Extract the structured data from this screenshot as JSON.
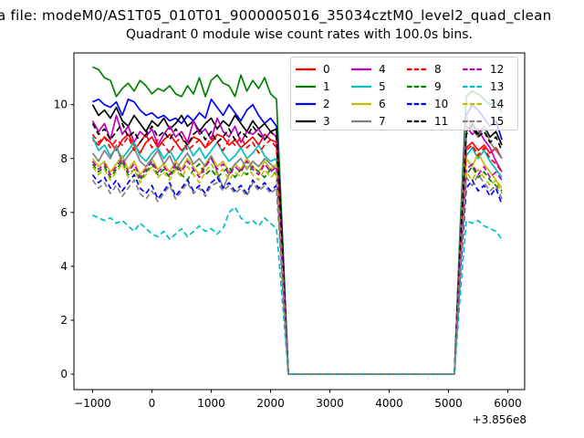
{
  "figure": {
    "suptitle": "a file: modeM0/AS1T05_010T01_9000005016_35034cztM0_level2_quad_clean",
    "axes_title": "Quadrant 0 module wise count rates with 100.0s bins."
  },
  "chart_data": {
    "type": "line",
    "title": "Quadrant 0 module wise count rates with 100.0s bins.",
    "xlabel": "",
    "ylabel": "",
    "grid": false,
    "xlim": [
      -1315,
      6285
    ],
    "ylim": [
      -0.576,
      11.92
    ],
    "x_offset_label": "+3.856e8",
    "x_ticks": {
      "values": [
        -1000,
        0,
        1000,
        2000,
        3000,
        4000,
        5000,
        6000
      ],
      "labels": [
        "−1000",
        "0",
        "1000",
        "2000",
        "3000",
        "4000",
        "5000",
        "6000"
      ]
    },
    "y_ticks": {
      "values": [
        0,
        2,
        4,
        6,
        8,
        10
      ],
      "labels": [
        "0",
        "2",
        "4",
        "6",
        "8",
        "10"
      ]
    },
    "x_start": -1000,
    "x_step": 100,
    "legend": {
      "position": "upper right",
      "ncol": 4
    },
    "series": [
      {
        "name": "0",
        "color": "#ff0000",
        "dashed": false,
        "values": [
          8.7,
          8.5,
          8.8,
          8.6,
          8.3,
          8.7,
          8.9,
          8.5,
          8.2,
          8.6,
          8.8,
          8.4,
          8.7,
          8.9,
          8.6,
          8.3,
          8.5,
          8.8,
          8.7,
          8.4,
          8.6,
          8.9,
          8.8,
          8.5,
          8.7,
          8.4,
          8.6,
          8.8,
          8.5,
          8.9,
          8.7,
          8.6,
          4.3,
          0,
          0,
          0,
          0,
          0,
          0,
          0,
          0,
          0,
          0,
          0,
          0,
          0,
          0,
          0,
          0,
          0,
          0,
          0,
          0,
          0,
          0,
          0,
          0,
          0,
          0,
          0,
          0,
          0,
          4.6,
          8.4,
          8.6,
          8.3,
          8.5,
          8.2,
          8.4,
          8.0
        ]
      },
      {
        "name": "1",
        "color": "#008000",
        "dashed": false,
        "values": [
          11.4,
          11.3,
          11.0,
          10.9,
          10.3,
          10.6,
          10.8,
          10.5,
          10.9,
          10.7,
          10.4,
          10.6,
          10.5,
          10.7,
          10.4,
          10.3,
          10.7,
          10.4,
          11.0,
          10.3,
          10.9,
          11.1,
          10.8,
          10.7,
          10.3,
          11.1,
          10.5,
          10.9,
          10.6,
          11.0,
          10.4,
          10.2,
          5.2,
          0,
          0,
          0,
          0,
          0,
          0,
          0,
          0,
          0,
          0,
          0,
          0,
          0,
          0,
          0,
          0,
          0,
          0,
          0,
          0,
          0,
          0,
          0,
          0,
          0,
          0,
          0,
          0,
          0,
          5.6,
          10.3,
          10.5,
          10.4,
          10.2,
          10.0,
          10.1,
          9.7
        ]
      },
      {
        "name": "2",
        "color": "#0000ff",
        "dashed": false,
        "values": [
          10.1,
          10.2,
          10.0,
          9.9,
          10.1,
          9.6,
          10.2,
          10.1,
          9.8,
          9.6,
          9.7,
          9.5,
          9.6,
          9.4,
          9.5,
          9.3,
          9.6,
          9.4,
          9.7,
          9.5,
          10.2,
          9.9,
          9.6,
          10.0,
          9.7,
          9.4,
          9.8,
          10.0,
          9.6,
          9.3,
          9.5,
          9.2,
          4.7,
          0,
          0,
          0,
          0,
          0,
          0,
          0,
          0,
          0,
          0,
          0,
          0,
          0,
          0,
          0,
          0,
          0,
          0,
          0,
          0,
          0,
          0,
          0,
          0,
          0,
          0,
          0,
          0,
          0,
          5.2,
          9.6,
          10.0,
          9.8,
          9.5,
          9.2,
          9.4,
          8.7
        ]
      },
      {
        "name": "3",
        "color": "#000000",
        "dashed": false,
        "values": [
          10.0,
          9.6,
          9.8,
          9.5,
          9.9,
          9.4,
          9.2,
          9.6,
          9.3,
          9.0,
          9.4,
          9.2,
          9.5,
          9.1,
          9.3,
          9.6,
          9.2,
          9.4,
          9.0,
          9.3,
          9.5,
          9.1,
          9.4,
          9.2,
          9.6,
          9.3,
          9.0,
          9.4,
          9.1,
          9.3,
          9.0,
          9.1,
          4.6,
          0,
          0,
          0,
          0,
          0,
          0,
          0,
          0,
          0,
          0,
          0,
          0,
          0,
          0,
          0,
          0,
          0,
          0,
          0,
          0,
          0,
          0,
          0,
          0,
          0,
          0,
          0,
          0,
          0,
          4.9,
          9.0,
          9.3,
          8.9,
          9.2,
          8.8,
          9.0,
          8.5
        ]
      },
      {
        "name": "4",
        "color": "#bf00bf",
        "dashed": false,
        "values": [
          9.4,
          9.0,
          9.3,
          8.7,
          9.6,
          8.9,
          9.2,
          8.6,
          9.0,
          8.8,
          9.1,
          8.5,
          8.9,
          9.2,
          8.8,
          9.0,
          8.6,
          9.4,
          8.9,
          9.1,
          8.7,
          9.5,
          9.0,
          8.8,
          9.2,
          8.6,
          9.0,
          8.9,
          9.1,
          8.7,
          9.0,
          8.8,
          4.4,
          0,
          0,
          0,
          0,
          0,
          0,
          0,
          0,
          0,
          0,
          0,
          0,
          0,
          0,
          0,
          0,
          0,
          0,
          0,
          0,
          0,
          0,
          0,
          0,
          0,
          0,
          0,
          0,
          0,
          5.0,
          9.2,
          8.9,
          9.1,
          8.7,
          8.4,
          7.9,
          7.5
        ]
      },
      {
        "name": "5",
        "color": "#00bfbf",
        "dashed": false,
        "values": [
          8.8,
          8.3,
          8.5,
          8.1,
          8.4,
          8.0,
          8.3,
          8.6,
          8.1,
          7.9,
          8.2,
          8.4,
          8.0,
          8.3,
          7.9,
          8.2,
          8.5,
          8.1,
          8.4,
          8.0,
          8.3,
          8.6,
          8.2,
          7.9,
          8.1,
          8.4,
          8.0,
          8.2,
          8.5,
          8.1,
          7.9,
          8.0,
          4.0,
          0,
          0,
          0,
          0,
          0,
          0,
          0,
          0,
          0,
          0,
          0,
          0,
          0,
          0,
          0,
          0,
          0,
          0,
          0,
          0,
          0,
          0,
          0,
          0,
          0,
          0,
          0,
          0,
          0,
          4.4,
          8.1,
          8.4,
          8.0,
          8.3,
          7.9,
          7.6,
          7.3
        ]
      },
      {
        "name": "6",
        "color": "#bfbf00",
        "dashed": false,
        "values": [
          8.0,
          7.7,
          7.9,
          7.5,
          7.8,
          8.1,
          7.6,
          7.9,
          7.4,
          7.7,
          8.0,
          7.6,
          7.8,
          7.5,
          7.9,
          7.6,
          8.0,
          7.7,
          7.4,
          7.8,
          8.1,
          7.7,
          7.9,
          7.5,
          7.8,
          7.6,
          8.0,
          7.7,
          7.5,
          7.9,
          7.6,
          7.8,
          3.9,
          0,
          0,
          0,
          0,
          0,
          0,
          0,
          0,
          0,
          0,
          0,
          0,
          0,
          0,
          0,
          0,
          0,
          0,
          0,
          0,
          0,
          0,
          0,
          0,
          0,
          0,
          0,
          0,
          0,
          4.3,
          8.0,
          7.7,
          8.2,
          7.8,
          7.5,
          7.2,
          6.9
        ]
      },
      {
        "name": "7",
        "color": "#808080",
        "dashed": false,
        "values": [
          8.2,
          7.9,
          8.3,
          8.0,
          8.5,
          7.8,
          8.1,
          8.4,
          7.9,
          7.7,
          8.0,
          8.3,
          7.8,
          8.1,
          7.6,
          7.9,
          8.2,
          7.8,
          8.0,
          7.7,
          8.1,
          7.5,
          6.9,
          7.4,
          7.8,
          8.0,
          7.6,
          7.9,
          7.7,
          8.0,
          7.8,
          7.6,
          3.8,
          0,
          0,
          0,
          0,
          0,
          0,
          0,
          0,
          0,
          0,
          0,
          0,
          0,
          0,
          0,
          0,
          0,
          0,
          0,
          0,
          0,
          0,
          0,
          0,
          0,
          0,
          0,
          0,
          0,
          5.2,
          9.6,
          9.1,
          8.8,
          9.2,
          8.6,
          8.3,
          8.0
        ]
      },
      {
        "name": "8",
        "color": "#ff0000",
        "dashed": true,
        "values": [
          8.9,
          8.6,
          8.8,
          8.4,
          8.7,
          8.5,
          8.8,
          8.3,
          8.6,
          8.9,
          8.4,
          8.7,
          8.5,
          8.2,
          8.6,
          8.8,
          8.3,
          8.5,
          8.7,
          8.4,
          8.8,
          8.6,
          8.3,
          8.7,
          8.5,
          8.8,
          8.4,
          8.6,
          8.2,
          8.5,
          8.7,
          8.4,
          4.2,
          0,
          0,
          0,
          0,
          0,
          0,
          0,
          0,
          0,
          0,
          0,
          0,
          0,
          0,
          0,
          0,
          0,
          0,
          0,
          0,
          0,
          0,
          0,
          0,
          0,
          0,
          0,
          0,
          0,
          4.5,
          8.3,
          8.5,
          8.1,
          8.4,
          8.0,
          7.8,
          7.5
        ]
      },
      {
        "name": "9",
        "color": "#008000",
        "dashed": true,
        "values": [
          7.8,
          7.5,
          7.7,
          7.3,
          7.6,
          7.9,
          7.4,
          7.6,
          7.2,
          7.5,
          7.8,
          7.4,
          7.6,
          7.3,
          7.7,
          7.4,
          7.2,
          7.6,
          7.8,
          7.4,
          7.6,
          7.3,
          7.5,
          7.7,
          7.3,
          7.6,
          7.4,
          7.7,
          7.5,
          7.3,
          7.6,
          7.4,
          3.7,
          0,
          0,
          0,
          0,
          0,
          0,
          0,
          0,
          0,
          0,
          0,
          0,
          0,
          0,
          0,
          0,
          0,
          0,
          0,
          0,
          0,
          0,
          0,
          0,
          0,
          0,
          0,
          0,
          0,
          4.0,
          7.4,
          7.7,
          7.3,
          7.5,
          7.2,
          7.0,
          6.8
        ]
      },
      {
        "name": "10",
        "color": "#0000ff",
        "dashed": true,
        "values": [
          7.4,
          7.1,
          7.3,
          6.9,
          7.2,
          6.8,
          7.1,
          7.4,
          6.9,
          6.7,
          7.0,
          6.5,
          6.8,
          7.1,
          6.6,
          6.9,
          7.2,
          6.8,
          7.0,
          6.7,
          7.1,
          7.3,
          6.9,
          7.1,
          6.8,
          7.0,
          6.7,
          7.2,
          6.9,
          7.1,
          6.8,
          7.0,
          3.5,
          0,
          0,
          0,
          0,
          0,
          0,
          0,
          0,
          0,
          0,
          0,
          0,
          0,
          0,
          0,
          0,
          0,
          0,
          0,
          0,
          0,
          0,
          0,
          0,
          0,
          0,
          0,
          0,
          0,
          3.7,
          6.9,
          7.2,
          6.8,
          7.0,
          6.6,
          6.9,
          6.3
        ]
      },
      {
        "name": "11",
        "color": "#000000",
        "dashed": true,
        "values": [
          9.3,
          8.9,
          9.1,
          8.7,
          9.0,
          9.3,
          8.8,
          9.0,
          8.6,
          8.9,
          9.2,
          8.8,
          9.0,
          8.7,
          9.1,
          8.8,
          8.5,
          8.9,
          9.1,
          8.7,
          9.0,
          8.6,
          8.8,
          9.1,
          8.7,
          9.0,
          8.8,
          9.2,
          8.9,
          8.7,
          9.0,
          8.8,
          4.4,
          0,
          0,
          0,
          0,
          0,
          0,
          0,
          0,
          0,
          0,
          0,
          0,
          0,
          0,
          0,
          0,
          0,
          0,
          0,
          0,
          0,
          0,
          0,
          0,
          0,
          0,
          0,
          0,
          0,
          4.8,
          8.9,
          9.2,
          8.8,
          9.0,
          8.6,
          8.8,
          8.3
        ]
      },
      {
        "name": "12",
        "color": "#bf00bf",
        "dashed": true,
        "values": [
          7.9,
          7.6,
          7.8,
          7.4,
          7.7,
          8.0,
          7.5,
          7.8,
          7.3,
          7.6,
          7.9,
          7.5,
          7.7,
          7.4,
          7.8,
          7.5,
          7.9,
          7.6,
          7.3,
          7.7,
          8.0,
          7.6,
          7.8,
          7.4,
          7.7,
          7.5,
          7.9,
          7.6,
          7.4,
          7.8,
          7.5,
          7.7,
          3.9,
          0,
          0,
          0,
          0,
          0,
          0,
          0,
          0,
          0,
          0,
          0,
          0,
          0,
          0,
          0,
          0,
          0,
          0,
          0,
          0,
          0,
          0,
          0,
          0,
          0,
          0,
          0,
          0,
          0,
          4.1,
          7.6,
          7.8,
          7.4,
          7.7,
          7.3,
          7.5,
          7.2
        ]
      },
      {
        "name": "13",
        "color": "#00bfbf",
        "dashed": true,
        "values": [
          5.9,
          5.8,
          5.7,
          5.8,
          5.6,
          5.7,
          5.5,
          5.3,
          5.6,
          5.4,
          5.2,
          5.1,
          5.3,
          5.0,
          5.2,
          5.4,
          5.1,
          5.3,
          5.5,
          5.3,
          5.4,
          5.2,
          5.4,
          6.0,
          6.2,
          5.8,
          5.6,
          5.7,
          5.5,
          5.8,
          5.6,
          5.4,
          2.7,
          0,
          0,
          0,
          0,
          0,
          0,
          0,
          0,
          0,
          0,
          0,
          0,
          0,
          0,
          0,
          0,
          0,
          0,
          0,
          0,
          0,
          0,
          0,
          0,
          0,
          0,
          0,
          0,
          0,
          3.0,
          5.7,
          5.6,
          5.7,
          5.5,
          5.4,
          5.3,
          5.0
        ]
      },
      {
        "name": "14",
        "color": "#bfbf00",
        "dashed": true,
        "values": [
          7.7,
          7.4,
          7.6,
          7.2,
          7.5,
          7.8,
          7.3,
          7.6,
          7.1,
          7.4,
          7.7,
          7.3,
          7.5,
          7.2,
          7.6,
          7.3,
          7.7,
          7.4,
          7.1,
          7.5,
          7.8,
          7.4,
          7.6,
          7.2,
          7.5,
          7.3,
          7.7,
          7.4,
          7.2,
          7.6,
          7.3,
          7.5,
          3.7,
          0,
          0,
          0,
          0,
          0,
          0,
          0,
          0,
          0,
          0,
          0,
          0,
          0,
          0,
          0,
          0,
          0,
          0,
          0,
          0,
          0,
          0,
          0,
          0,
          0,
          0,
          0,
          0,
          0,
          4.0,
          7.5,
          7.2,
          7.6,
          7.3,
          7.0,
          7.2,
          6.7
        ]
      },
      {
        "name": "15",
        "color": "#808080",
        "dashed": true,
        "values": [
          7.2,
          6.9,
          7.1,
          6.7,
          7.0,
          6.6,
          6.9,
          7.2,
          6.7,
          6.5,
          6.8,
          6.4,
          6.7,
          7.0,
          6.5,
          6.8,
          7.1,
          6.7,
          6.9,
          6.6,
          7.0,
          7.1,
          6.8,
          7.0,
          6.7,
          6.9,
          6.6,
          7.1,
          6.8,
          7.0,
          6.7,
          6.9,
          3.4,
          0,
          0,
          0,
          0,
          0,
          0,
          0,
          0,
          0,
          0,
          0,
          0,
          0,
          0,
          0,
          0,
          0,
          0,
          0,
          0,
          0,
          0,
          0,
          0,
          0,
          0,
          0,
          0,
          0,
          3.9,
          7.3,
          7.0,
          7.4,
          7.1,
          6.8,
          7.0,
          6.5
        ]
      }
    ]
  }
}
